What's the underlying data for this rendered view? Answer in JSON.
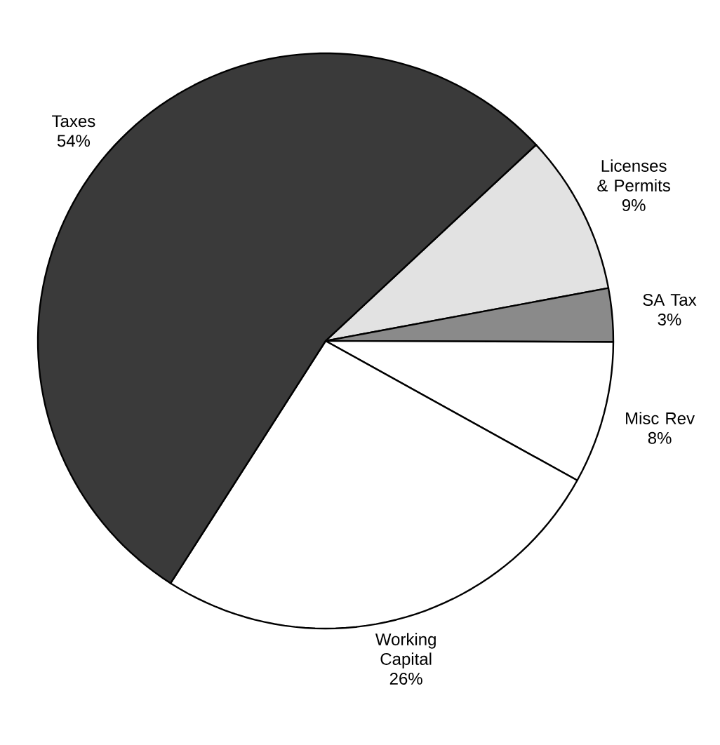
{
  "chart_data": {
    "type": "pie",
    "categories": [
      "Licenses & Permits",
      "SA Tax",
      "Misc Rev",
      "Working Capital",
      "Taxes"
    ],
    "values": [
      9,
      3,
      8,
      26,
      54
    ],
    "value_labels": [
      "9%",
      "3%",
      "8%",
      "26%",
      "54%"
    ],
    "colors": [
      "#e2e2e2",
      "#8a8a8a",
      "#ffffff",
      "#ffffff",
      "#3a3a3a"
    ]
  }
}
